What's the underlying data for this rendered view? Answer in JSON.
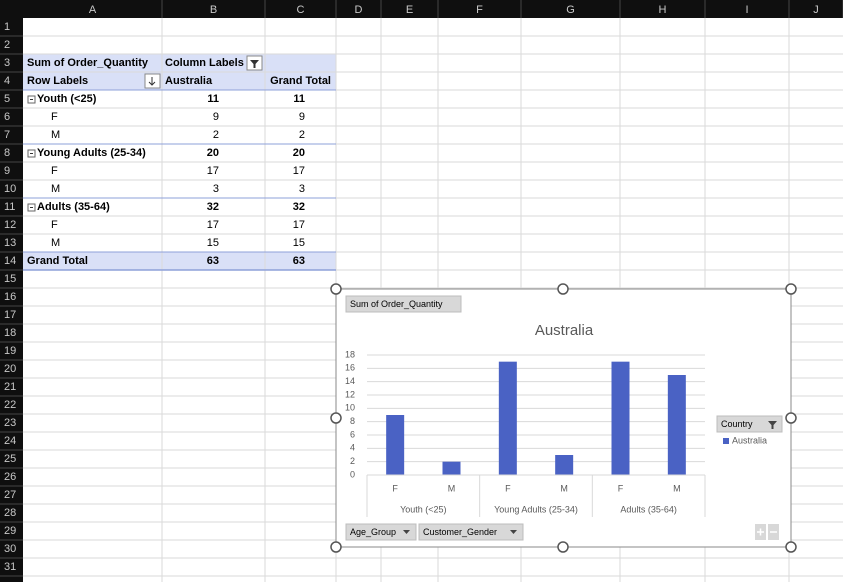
{
  "sheet": {
    "columns": [
      "A",
      "B",
      "C",
      "D",
      "E",
      "F",
      "G",
      "H",
      "I",
      "J"
    ],
    "rows": [
      1,
      2,
      3,
      4,
      5,
      6,
      7,
      8,
      9,
      10,
      11,
      12,
      13,
      14,
      15,
      16,
      17,
      18,
      19,
      20,
      21,
      22,
      23,
      24,
      25,
      26,
      27,
      28,
      29,
      30,
      31
    ]
  },
  "pivot": {
    "header": [
      "Sum of Order_Quantity",
      "Column Labels"
    ],
    "subheader": [
      "Row Labels",
      "Australia",
      "Grand Total"
    ],
    "groups": [
      {
        "label": "Youth (<25)",
        "values": [
          11,
          11
        ],
        "children": [
          {
            "label": "F",
            "values": [
              9,
              9
            ]
          },
          {
            "label": "M",
            "values": [
              2,
              2
            ]
          }
        ]
      },
      {
        "label": "Young Adults (25-34)",
        "values": [
          20,
          20
        ],
        "children": [
          {
            "label": "F",
            "values": [
              17,
              17
            ]
          },
          {
            "label": "M",
            "values": [
              3,
              3
            ]
          }
        ]
      },
      {
        "label": "Adults (35-64)",
        "values": [
          32,
          32
        ],
        "children": [
          {
            "label": "F",
            "values": [
              17,
              17
            ]
          },
          {
            "label": "M",
            "values": [
              15,
              15
            ]
          }
        ]
      }
    ],
    "grand_total": {
      "label": "Grand Total",
      "values": [
        63,
        63
      ]
    }
  },
  "chart_data": {
    "type": "bar",
    "title": "Australia",
    "value_field": "Sum of Order_Quantity",
    "legend_field": "Country",
    "axis_fields": [
      "Age_Group",
      "Customer_Gender"
    ],
    "categories": [
      "F",
      "M",
      "F",
      "M",
      "F",
      "M"
    ],
    "groups": [
      "Youth (<25)",
      "Young Adults (25-34)",
      "Adults (35-64)"
    ],
    "series": [
      {
        "name": "Australia",
        "color": "#4a62c4",
        "values": [
          9,
          2,
          17,
          3,
          17,
          15
        ]
      }
    ],
    "ylim": [
      0,
      18
    ],
    "yticks": [
      0,
      2,
      4,
      6,
      8,
      10,
      12,
      14,
      16,
      18
    ],
    "grid": true,
    "legend": "right"
  }
}
